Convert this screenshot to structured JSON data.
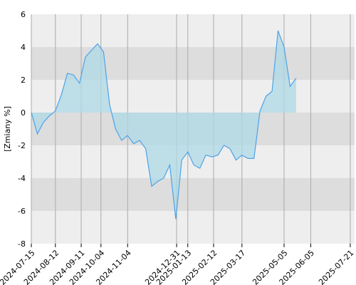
{
  "chart_data": {
    "type": "area",
    "ylabel": "[Zmiany %]",
    "ylim": [
      -8,
      6
    ],
    "yticks": [
      -8,
      -6,
      -4,
      -2,
      0,
      2,
      4,
      6
    ],
    "xlim": [
      "2024-07-15",
      "2025-07-26"
    ],
    "xticks": [
      "2024-07-15",
      "2024-08-12",
      "2024-09-11",
      "2024-10-04",
      "2024-11-04",
      "2024-12-31",
      "2025-01-13",
      "2025-02-12",
      "2025-03-17",
      "2025-05-05",
      "2025-06-05",
      "2025-07-21"
    ],
    "grid": true,
    "legend": "none",
    "colors": {
      "line": "#4da3e8",
      "fill": "#add8e6",
      "band_light": "#eeeeee",
      "band_dark": "#dddddd",
      "grid": "#aaaaaa"
    },
    "series": [
      {
        "points": [
          [
            "2024-07-15",
            0.0
          ],
          [
            "2024-07-22",
            -1.3
          ],
          [
            "2024-07-29",
            -0.6
          ],
          [
            "2024-08-05",
            -0.2
          ],
          [
            "2024-08-12",
            0.1
          ],
          [
            "2024-08-19",
            1.1
          ],
          [
            "2024-08-26",
            2.4
          ],
          [
            "2024-09-02",
            2.3
          ],
          [
            "2024-09-09",
            1.8
          ],
          [
            "2024-09-16",
            3.4
          ],
          [
            "2024-09-23",
            3.8
          ],
          [
            "2024-09-30",
            4.2
          ],
          [
            "2024-10-07",
            3.7
          ],
          [
            "2024-10-14",
            0.5
          ],
          [
            "2024-10-21",
            -1.0
          ],
          [
            "2024-10-28",
            -1.7
          ],
          [
            "2024-11-04",
            -1.4
          ],
          [
            "2024-11-11",
            -1.9
          ],
          [
            "2024-11-18",
            -1.7
          ],
          [
            "2024-11-25",
            -2.2
          ],
          [
            "2024-12-02",
            -4.5
          ],
          [
            "2024-12-09",
            -4.2
          ],
          [
            "2024-12-16",
            -4.0
          ],
          [
            "2024-12-23",
            -3.2
          ],
          [
            "2024-12-30",
            -6.5
          ],
          [
            "2025-01-06",
            -2.9
          ],
          [
            "2025-01-13",
            -2.4
          ],
          [
            "2025-01-20",
            -3.2
          ],
          [
            "2025-01-27",
            -3.4
          ],
          [
            "2025-02-03",
            -2.6
          ],
          [
            "2025-02-10",
            -2.7
          ],
          [
            "2025-02-17",
            -2.6
          ],
          [
            "2025-02-24",
            -2.0
          ],
          [
            "2025-03-03",
            -2.2
          ],
          [
            "2025-03-10",
            -2.9
          ],
          [
            "2025-03-17",
            -2.6
          ],
          [
            "2025-03-24",
            -2.8
          ],
          [
            "2025-03-31",
            -2.8
          ],
          [
            "2025-04-07",
            0.1
          ],
          [
            "2025-04-14",
            1.0
          ],
          [
            "2025-04-21",
            1.3
          ],
          [
            "2025-04-28",
            5.0
          ],
          [
            "2025-05-05",
            4.0
          ],
          [
            "2025-05-12",
            1.6
          ],
          [
            "2025-05-19",
            2.1
          ]
        ]
      }
    ]
  }
}
